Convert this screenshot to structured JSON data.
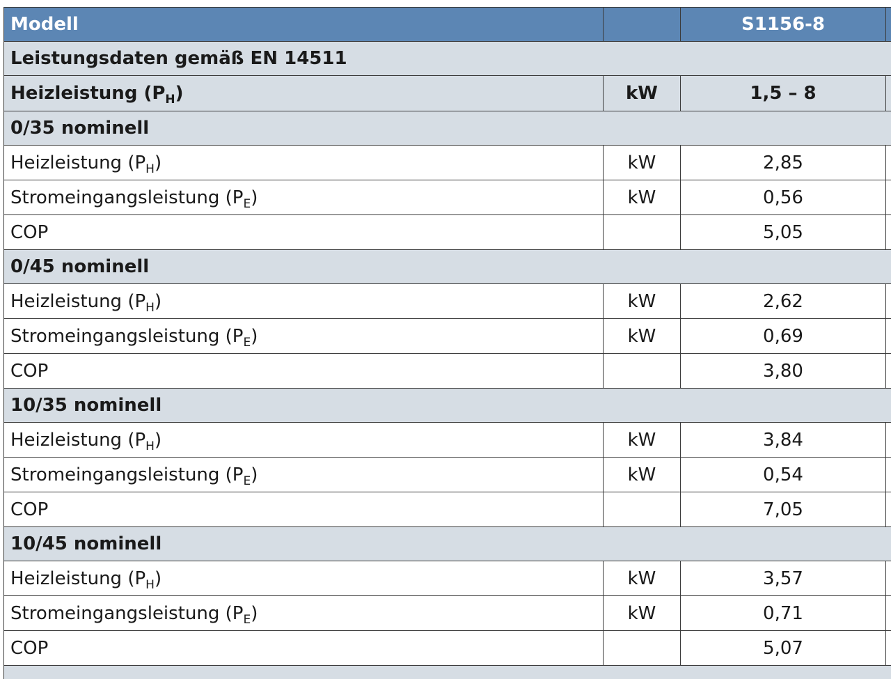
{
  "header": {
    "model_label": "Modell",
    "model_name": "S1156-8"
  },
  "standard_row": {
    "label": "Leistungsdaten gemäß EN 14511"
  },
  "range_row": {
    "label_main": "Heizleistung (P",
    "label_sub": "H",
    "label_end": ")",
    "unit": "kW",
    "value": "1,5 – 8"
  },
  "sections": [
    {
      "title": "0/35 nominell",
      "rows": [
        {
          "label": "Heizleistung (P",
          "sub": "H",
          "end": ")",
          "unit": "kW",
          "value": "2,85"
        },
        {
          "label": "Stromeingangsleistung (P",
          "sub": "E",
          "end": ")",
          "unit": "kW",
          "value": "0,56"
        },
        {
          "label": "COP",
          "sub": "",
          "end": "",
          "unit": "",
          "value": "5,05"
        }
      ]
    },
    {
      "title": "0/45 nominell",
      "rows": [
        {
          "label": "Heizleistung (P",
          "sub": "H",
          "end": ")",
          "unit": "kW",
          "value": "2,62"
        },
        {
          "label": "Stromeingangsleistung (P",
          "sub": "E",
          "end": ")",
          "unit": "kW",
          "value": "0,69"
        },
        {
          "label": "COP",
          "sub": "",
          "end": "",
          "unit": "",
          "value": "3,80"
        }
      ]
    },
    {
      "title": "10/35 nominell",
      "rows": [
        {
          "label": "Heizleistung (P",
          "sub": "H",
          "end": ")",
          "unit": "kW",
          "value": "3,84"
        },
        {
          "label": "Stromeingangsleistung (P",
          "sub": "E",
          "end": ")",
          "unit": "kW",
          "value": "0,54"
        },
        {
          "label": "COP",
          "sub": "",
          "end": "",
          "unit": "",
          "value": "7,05"
        }
      ]
    },
    {
      "title": "10/45 nominell",
      "rows": [
        {
          "label": "Heizleistung (P",
          "sub": "H",
          "end": ")",
          "unit": "kW",
          "value": "3,57"
        },
        {
          "label": "Stromeingangsleistung (P",
          "sub": "E",
          "end": ")",
          "unit": "kW",
          "value": "0,71"
        },
        {
          "label": "COP",
          "sub": "",
          "end": "",
          "unit": "",
          "value": "5,07"
        }
      ]
    }
  ],
  "colors": {
    "header_bg": "#5c86b4",
    "section_bg": "#d6dde4",
    "border": "#3a3a3a"
  }
}
